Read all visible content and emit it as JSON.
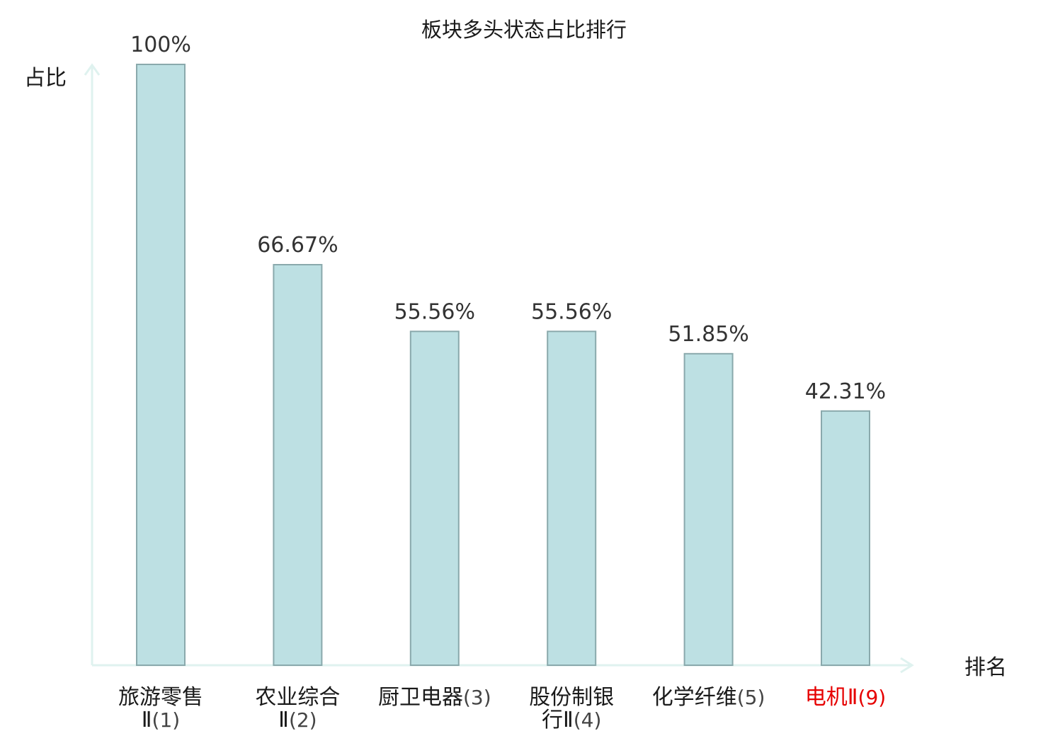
{
  "chart_data": {
    "type": "bar",
    "title": "板块多头状态占比排行",
    "ylabel": "占比",
    "xlabel": "排名",
    "ylim": [
      0,
      100
    ],
    "grid": false,
    "categories": [
      {
        "name": "旅游零售Ⅱ",
        "rank": "(1)",
        "lines": [
          {
            "text": "旅游零售",
            "suffix": ""
          },
          {
            "text": "Ⅱ",
            "suffix": "(1)"
          }
        ],
        "highlight": false
      },
      {
        "name": "农业综合Ⅱ",
        "rank": "(2)",
        "lines": [
          {
            "text": "农业综合",
            "suffix": ""
          },
          {
            "text": "Ⅱ",
            "suffix": "(2)"
          }
        ],
        "highlight": false
      },
      {
        "name": "厨卫电器",
        "rank": "(3)",
        "lines": [
          {
            "text": "厨卫电器",
            "suffix": "(3)"
          }
        ],
        "highlight": false
      },
      {
        "name": "股份制银行Ⅱ",
        "rank": "(4)",
        "lines": [
          {
            "text": "股份制银",
            "suffix": ""
          },
          {
            "text": "行Ⅱ",
            "suffix": "(4)"
          }
        ],
        "highlight": false
      },
      {
        "name": "化学纤维",
        "rank": "(5)",
        "lines": [
          {
            "text": "化学纤维",
            "suffix": "(5)"
          }
        ],
        "highlight": false
      },
      {
        "name": "电机Ⅱ",
        "rank": "(9)",
        "lines": [
          {
            "text": "电机Ⅱ",
            "suffix": "(9)"
          }
        ],
        "highlight": true
      }
    ],
    "values": [
      100,
      66.67,
      55.56,
      55.56,
      51.85,
      42.31
    ],
    "value_labels": [
      "100%",
      "66.67%",
      "55.56%",
      "55.56%",
      "51.85%",
      "42.31%"
    ],
    "colors": {
      "bar_fill": "#bde0e3",
      "bar_stroke": "#8aa9ac",
      "axis": "#dff2ef",
      "text": "#1a1a1a",
      "value_text": "#333333",
      "highlight": "#e60000",
      "suffix_text": "#444444"
    }
  }
}
